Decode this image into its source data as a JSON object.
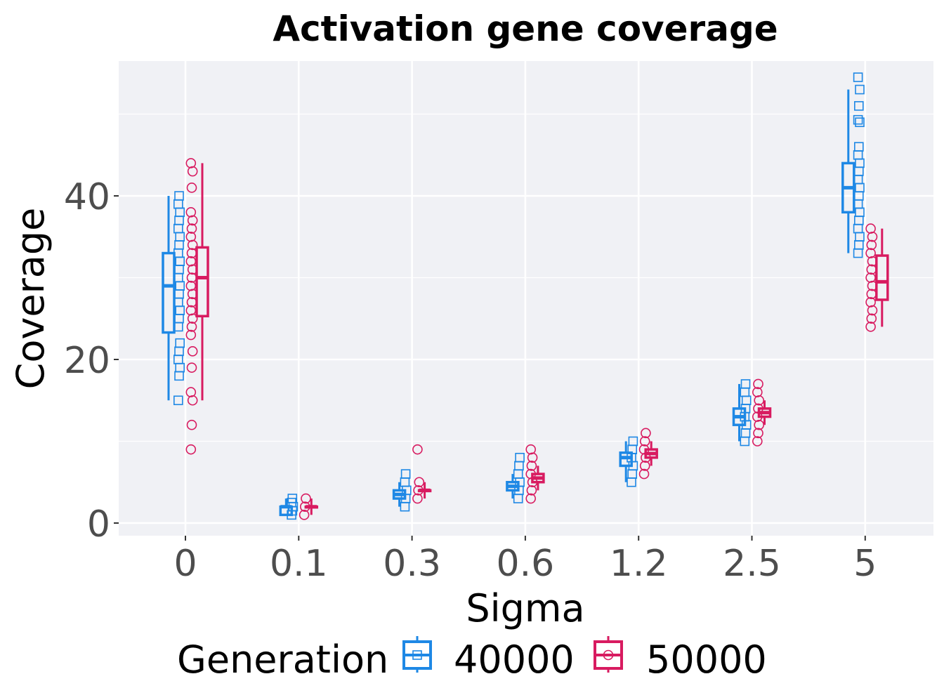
{
  "chart_data": {
    "type": "box",
    "title": "Activation gene coverage",
    "xlabel": "Sigma",
    "ylabel": "Coverage",
    "categories": [
      "0",
      "0.1",
      "0.3",
      "0.6",
      "1.2",
      "2.5",
      "5"
    ],
    "y_ticks": [
      0,
      20,
      40
    ],
    "ylim": [
      -1.5,
      56.5
    ],
    "grid": true,
    "legend": {
      "title": "Generation",
      "position": "bottom"
    },
    "series": [
      {
        "name": "40000",
        "color": "#1e88e5",
        "marker": "square",
        "boxes": [
          {
            "min": 15,
            "q1": 23.3,
            "median": 29,
            "q3": 33,
            "max": 40,
            "points": [
              15,
              18,
              19,
              20,
              21,
              22,
              24,
              25,
              26,
              27,
              28,
              29,
              30,
              31,
              32,
              33,
              34,
              35,
              36,
              37,
              38,
              39,
              40
            ]
          },
          {
            "min": 1,
            "q1": 1,
            "median": 2,
            "q3": 2,
            "max": 3,
            "points": [
              1,
              1.5,
              2,
              2.5,
              3
            ]
          },
          {
            "min": 2,
            "q1": 3,
            "median": 3.5,
            "q3": 4,
            "max": 5,
            "points": [
              2,
              3,
              4,
              5,
              6
            ]
          },
          {
            "min": 3,
            "q1": 4,
            "median": 4.5,
            "q3": 5,
            "max": 6,
            "points": [
              3,
              4,
              5,
              6,
              7,
              8
            ]
          },
          {
            "min": 5,
            "q1": 7,
            "median": 8,
            "q3": 8.6,
            "max": 10,
            "points": [
              5,
              6,
              7,
              8,
              9,
              10
            ]
          },
          {
            "min": 10,
            "q1": 12,
            "median": 13,
            "q3": 14,
            "max": 17,
            "points": [
              10,
              11,
              12,
              13,
              14,
              15,
              16,
              17
            ]
          },
          {
            "min": 33,
            "q1": 38,
            "median": 41,
            "q3": 44,
            "max": 53,
            "points": [
              33,
              34,
              35,
              36,
              37,
              38,
              39,
              40,
              41,
              42,
              43,
              44,
              45,
              46,
              49,
              49.3,
              51,
              53,
              54.5
            ]
          }
        ]
      },
      {
        "name": "50000",
        "color": "#d81b60",
        "marker": "circle",
        "boxes": [
          {
            "min": 15,
            "q1": 25.3,
            "median": 30,
            "q3": 33.7,
            "max": 44,
            "points": [
              9,
              12,
              15,
              16,
              19,
              21,
              23,
              24,
              25,
              26,
              27,
              28,
              29,
              30,
              31,
              32,
              33,
              34,
              35,
              36,
              37,
              38,
              41,
              43,
              44
            ]
          },
          {
            "min": 1,
            "q1": 2,
            "median": 2,
            "q3": 2,
            "max": 3,
            "points": [
              1,
              2,
              3
            ]
          },
          {
            "min": 3,
            "q1": 4,
            "median": 4,
            "q3": 4,
            "max": 5,
            "points": [
              3,
              4,
              5,
              9
            ]
          },
          {
            "min": 4,
            "q1": 5,
            "median": 5.5,
            "q3": 6,
            "max": 7,
            "points": [
              3,
              4,
              5,
              6,
              7,
              8,
              9
            ]
          },
          {
            "min": 7,
            "q1": 8,
            "median": 8.5,
            "q3": 9,
            "max": 10,
            "points": [
              6,
              7,
              8,
              9,
              10,
              11
            ]
          },
          {
            "min": 12,
            "q1": 13,
            "median": 13.5,
            "q3": 14,
            "max": 15,
            "points": [
              10,
              11,
              12,
              13,
              14,
              15,
              16,
              17
            ]
          },
          {
            "min": 24,
            "q1": 27.3,
            "median": 29.5,
            "q3": 32.7,
            "max": 36,
            "points": [
              24,
              25,
              26,
              27,
              28,
              29,
              30,
              31,
              32,
              33,
              34,
              35,
              36
            ]
          }
        ]
      }
    ]
  }
}
